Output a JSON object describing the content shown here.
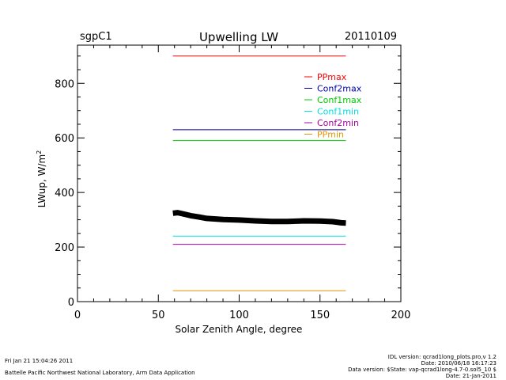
{
  "header": {
    "site": "sgpC1",
    "title": "Upwelling  LW",
    "date": "20110109"
  },
  "chart_data": {
    "type": "line",
    "title": "Upwelling  LW",
    "xlabel": "Solar  Zenith  Angle,  degree",
    "ylabel": "LWup,  W/m",
    "ylabel_superscript": "2",
    "xlim": [
      0,
      200
    ],
    "ylim": [
      0,
      940
    ],
    "x_ticks": [
      0,
      50,
      100,
      150,
      200
    ],
    "y_ticks": [
      200,
      400,
      600,
      800
    ],
    "x_minor_step": 10,
    "y_minor_step": 50,
    "grid": false,
    "legend_position": "top-right",
    "limit_lines": [
      {
        "name": "PPmax",
        "value": 900,
        "x": [
          59,
          166
        ],
        "color": "#ff0000"
      },
      {
        "name": "Conf2max",
        "value": 630,
        "x": [
          59,
          166
        ],
        "color": "#0000aa"
      },
      {
        "name": "Conf1max",
        "value": 590,
        "x": [
          59,
          166
        ],
        "color": "#00cc00"
      },
      {
        "name": "Conf1min",
        "value": 240,
        "x": [
          59,
          166
        ],
        "color": "#00e0e0"
      },
      {
        "name": "Conf2min",
        "value": 210,
        "x": [
          59,
          166
        ],
        "color": "#aa00aa"
      },
      {
        "name": "PPmin",
        "value": 40,
        "x": [
          59,
          166
        ],
        "color": "#e69500"
      }
    ],
    "series": [
      {
        "color": "#000000",
        "x": [
          59,
          62,
          65,
          70,
          75,
          80,
          90,
          100,
          110,
          120,
          130,
          140,
          150,
          158,
          163,
          166
        ],
        "y": [
          324,
          326,
          322,
          315,
          310,
          305,
          301,
          299,
          296,
          294,
          294,
          296,
          295,
          293,
          289,
          288
        ]
      }
    ]
  },
  "footer": {
    "left_line1": "Fri Jan 21 15:04:26 2011",
    "left_line2": "Battelle Pacific Northwest National Laboratory, Arm Data Application",
    "right_line1": "IDL version: qcrad1long_plots.pro,v 1.2",
    "right_line2": "Date: 2010/06/18 16:17:23",
    "right_line3": "Data version: $State: vap-qcrad1long-4.7-0.sol5_10 $",
    "right_line4": "Date: 21-Jan-2011"
  }
}
